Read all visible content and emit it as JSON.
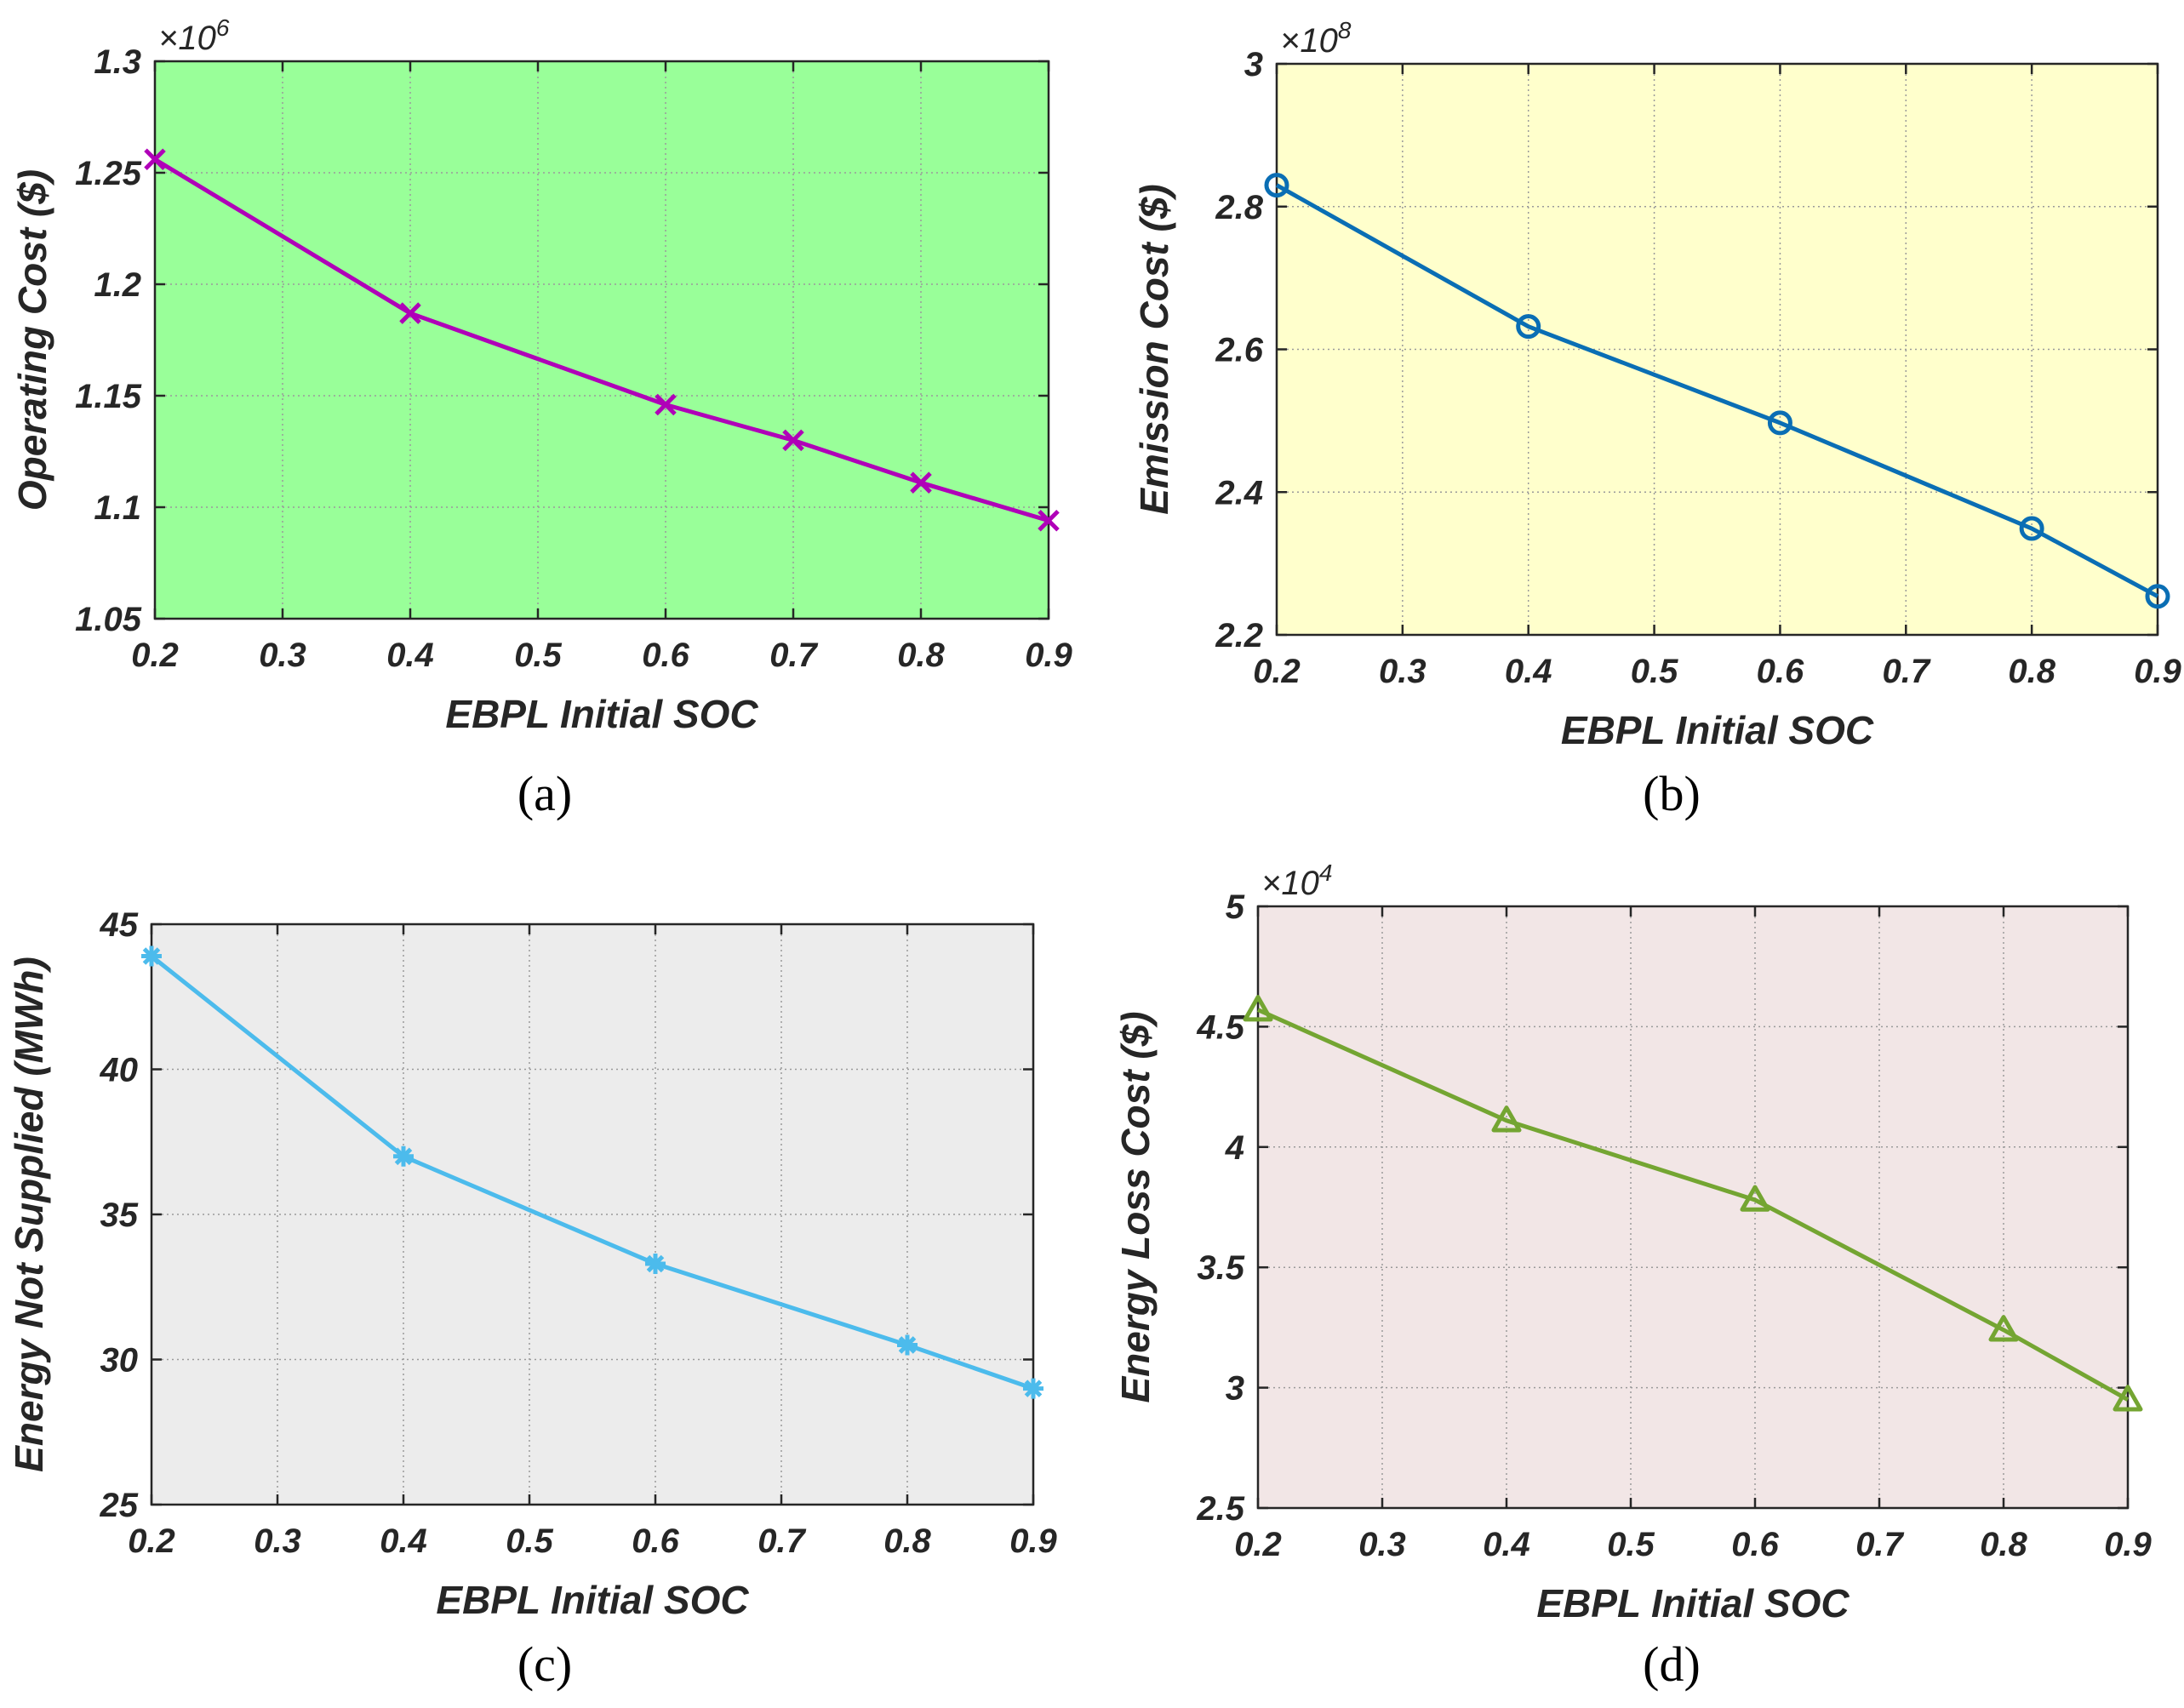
{
  "chart_data": [
    {
      "panel": "a",
      "type": "line",
      "caption": "(a)",
      "xlabel": "EBPL Initial SOC",
      "ylabel": "Operating Cost ($)",
      "exponent_label": "×10",
      "exponent_power": "6",
      "background_color": "#99ff99",
      "line_color": "#b000b8",
      "marker": "x",
      "x": [
        0.2,
        0.4,
        0.6,
        0.7,
        0.8,
        0.9
      ],
      "y": [
        1.256,
        1.187,
        1.146,
        1.13,
        1.111,
        1.094
      ],
      "xlim": [
        0.2,
        0.9
      ],
      "ylim": [
        1.05,
        1.3
      ],
      "xticks": [
        0.2,
        0.3,
        0.4,
        0.5,
        0.6,
        0.7,
        0.8,
        0.9
      ],
      "yticks": [
        1.05,
        1.1,
        1.15,
        1.2,
        1.25,
        1.3
      ],
      "xtick_labels": [
        "0.2",
        "0.3",
        "0.4",
        "0.5",
        "0.6",
        "0.7",
        "0.8",
        "0.9"
      ],
      "ytick_labels": [
        "1.05",
        "1.1",
        "1.15",
        "1.2",
        "1.25",
        "1.3"
      ],
      "grid": true
    },
    {
      "panel": "b",
      "type": "line",
      "caption": "(b)",
      "xlabel": "EBPL Initial SOC",
      "ylabel": "Emission Cost ($)",
      "exponent_label": "×10",
      "exponent_power": "8",
      "background_color": "#ffffcc",
      "line_color": "#0a6eb4",
      "marker": "o",
      "x": [
        0.2,
        0.4,
        0.6,
        0.8,
        0.9
      ],
      "y": [
        2.83,
        2.632,
        2.497,
        2.349,
        2.254
      ],
      "xlim": [
        0.2,
        0.9
      ],
      "ylim": [
        2.2,
        3.0
      ],
      "xticks": [
        0.2,
        0.3,
        0.4,
        0.5,
        0.6,
        0.7,
        0.8,
        0.9
      ],
      "yticks": [
        2.2,
        2.4,
        2.6,
        2.8,
        3.0
      ],
      "xtick_labels": [
        "0.2",
        "0.3",
        "0.4",
        "0.5",
        "0.6",
        "0.7",
        "0.8",
        "0.9"
      ],
      "ytick_labels": [
        "2.2",
        "2.4",
        "2.6",
        "2.8",
        "3"
      ],
      "grid": true
    },
    {
      "panel": "c",
      "type": "line",
      "caption": "(c)",
      "xlabel": "EBPL Initial SOC",
      "ylabel": "Energy Not Supplied (MWh)",
      "exponent_label": "",
      "exponent_power": "",
      "background_color": "#ececec",
      "line_color": "#4cbbec",
      "marker": "*",
      "x": [
        0.2,
        0.4,
        0.6,
        0.8,
        0.9
      ],
      "y": [
        43.9,
        37.0,
        33.3,
        30.5,
        29.0
      ],
      "xlim": [
        0.2,
        0.9
      ],
      "ylim": [
        25,
        45
      ],
      "xticks": [
        0.2,
        0.3,
        0.4,
        0.5,
        0.6,
        0.7,
        0.8,
        0.9
      ],
      "yticks": [
        25,
        30,
        35,
        40,
        45
      ],
      "xtick_labels": [
        "0.2",
        "0.3",
        "0.4",
        "0.5",
        "0.6",
        "0.7",
        "0.8",
        "0.9"
      ],
      "ytick_labels": [
        "25",
        "30",
        "35",
        "40",
        "45"
      ],
      "grid": true
    },
    {
      "panel": "d",
      "type": "line",
      "caption": "(d)",
      "xlabel": "EBPL Initial SOC",
      "ylabel": "Energy Loss Cost ($)",
      "exponent_label": "×10",
      "exponent_power": "4",
      "background_color": "#f2e6e6",
      "line_color": "#74a532",
      "marker": "triangle",
      "x": [
        0.2,
        0.4,
        0.6,
        0.8,
        0.9
      ],
      "y": [
        4.57,
        4.11,
        3.78,
        3.24,
        2.95
      ],
      "xlim": [
        0.2,
        0.9
      ],
      "ylim": [
        2.5,
        5.0
      ],
      "xticks": [
        0.2,
        0.3,
        0.4,
        0.5,
        0.6,
        0.7,
        0.8,
        0.9
      ],
      "yticks": [
        2.5,
        3.0,
        3.5,
        4.0,
        4.5,
        5.0
      ],
      "xtick_labels": [
        "0.2",
        "0.3",
        "0.4",
        "0.5",
        "0.6",
        "0.7",
        "0.8",
        "0.9"
      ],
      "ytick_labels": [
        "2.5",
        "3",
        "3.5",
        "4",
        "4.5",
        "5"
      ],
      "grid": true
    }
  ]
}
